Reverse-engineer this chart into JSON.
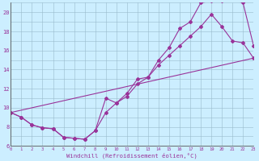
{
  "title": "",
  "xlabel": "Windchill (Refroidissement éolien,°C)",
  "ylabel": "",
  "bg_color": "#cceeff",
  "line_color": "#993399",
  "grid_color": "#99bbcc",
  "xmin": 0,
  "xmax": 23,
  "ymin": 6,
  "ymax": 21,
  "line1_x": [
    0,
    1,
    2,
    3,
    4,
    5,
    6,
    7,
    8,
    9,
    10,
    11,
    12,
    13,
    14,
    15,
    16,
    17,
    18,
    19,
    20,
    21,
    22,
    23
  ],
  "line1_y": [
    9.5,
    9.0,
    8.2,
    7.9,
    7.8,
    6.9,
    6.8,
    6.7,
    7.6,
    11.0,
    10.5,
    11.5,
    13.0,
    13.2,
    15.0,
    16.3,
    18.3,
    19.0,
    21.0,
    21.2,
    21.2,
    21.3,
    21.0,
    16.5
  ],
  "line2_x": [
    0,
    1,
    2,
    3,
    4,
    5,
    6,
    7,
    8,
    9,
    10,
    11,
    12,
    13,
    14,
    15,
    16,
    17,
    18,
    19,
    20,
    21,
    22,
    23
  ],
  "line2_y": [
    9.5,
    9.0,
    8.2,
    7.9,
    7.8,
    6.9,
    6.8,
    6.7,
    7.6,
    9.5,
    10.5,
    11.2,
    12.5,
    13.2,
    14.5,
    15.5,
    16.5,
    17.5,
    18.5,
    19.8,
    18.5,
    17.0,
    16.8,
    15.2
  ],
  "line3_x": [
    0,
    23
  ],
  "line3_y": [
    9.5,
    15.2
  ]
}
